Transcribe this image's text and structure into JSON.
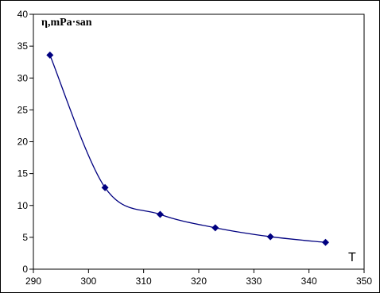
{
  "chart_data": {
    "type": "line",
    "title": "",
    "xlabel": "T",
    "ylabel": "η,mPa·san",
    "xlim": [
      290,
      350
    ],
    "ylim": [
      0,
      40
    ],
    "x_ticks": [
      290,
      300,
      310,
      320,
      330,
      340,
      350
    ],
    "y_ticks": [
      0,
      5,
      10,
      15,
      20,
      25,
      30,
      35,
      40
    ],
    "grid": false,
    "legend": "none",
    "series": [
      {
        "x": [
          293,
          303,
          313,
          323,
          333,
          343
        ],
        "y": [
          33.6,
          12.8,
          8.6,
          6.5,
          5.1,
          4.2
        ],
        "color": "#000080",
        "marker": "diamond",
        "smooth": true
      }
    ]
  }
}
